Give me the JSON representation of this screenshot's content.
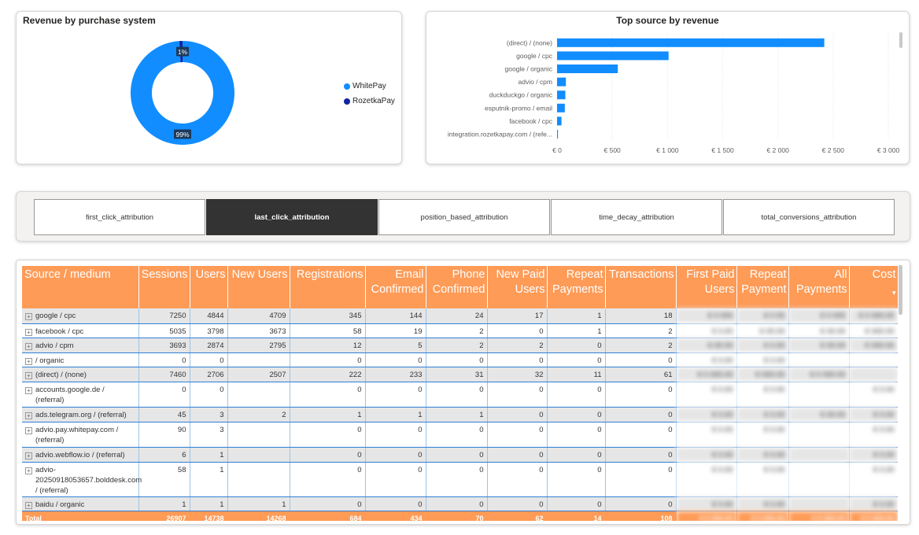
{
  "donut": {
    "title": "Revenue by purchase system",
    "slices": [
      {
        "name": "WhitePay",
        "value": 99,
        "label": "99%",
        "color": "#118dff"
      },
      {
        "name": "RozetkaPay",
        "value": 1,
        "label": "1%",
        "color": "#12239e"
      }
    ]
  },
  "chart_data": {
    "type": "bar",
    "title": "Top source by revenue",
    "categories": [
      "(direct) / (none)",
      "google / cpc",
      "google / organic",
      "advio / cpm",
      "duckduckgo / organic",
      "esputnik-promo / email",
      "facebook / cpc",
      "integration.rozetkapay.com / (refe..."
    ],
    "values": [
      2420,
      1010,
      550,
      80,
      75,
      70,
      40,
      8
    ],
    "xticks": [
      "€ 0",
      "€ 500",
      "€ 1 000",
      "€ 1 500",
      "€ 2 000",
      "€ 2 500",
      "€ 3 000"
    ],
    "xlim": [
      0,
      3000
    ],
    "color": "#118dff",
    "orientation": "horizontal"
  },
  "attribution_tabs": [
    {
      "label": "first_click_attribution",
      "active": false
    },
    {
      "label": "last_click_attribution",
      "active": true
    },
    {
      "label": "position_based_attribution",
      "active": false
    },
    {
      "label": "time_decay_attribution",
      "active": false
    },
    {
      "label": "total_conversions_attribution",
      "active": false
    }
  ],
  "table": {
    "headers": [
      "Source / medium",
      "Sessions",
      "Users",
      "New Users",
      "Registrations",
      "Email Confirmed",
      "Phone Confirmed",
      "New Paid Users",
      "Repeat Payments",
      "Transactions",
      "First Paid Users",
      "Repeat Payment",
      "All Payments",
      "Cost"
    ],
    "sort_indicator": "▾",
    "expand_icon": "+",
    "rows": [
      {
        "source": "google / cpc",
        "cells": [
          "7250",
          "4844",
          "4709",
          "345",
          "144",
          "24",
          "17",
          "1",
          "18"
        ],
        "masked": [
          "€ 0 000",
          "€ 0 00",
          "€ 0 000",
          "€ 0 000.00"
        ]
      },
      {
        "source": "facebook / cpc",
        "cells": [
          "5035",
          "3798",
          "3673",
          "58",
          "19",
          "2",
          "0",
          "1",
          "2"
        ],
        "masked": [
          "€ 0.00",
          "€ 00.00",
          "€ 00.00",
          "€ 000.00"
        ]
      },
      {
        "source": "advio / cpm",
        "cells": [
          "3693",
          "2874",
          "2795",
          "12",
          "5",
          "2",
          "2",
          "0",
          "2"
        ],
        "masked": [
          "€ 00.00",
          "€ 0.00",
          "€ 00.00",
          "€ 000.00"
        ]
      },
      {
        "source": "/ organic",
        "cells": [
          "0",
          "0",
          "",
          "0",
          "0",
          "0",
          "0",
          "0",
          "0"
        ],
        "masked": [
          "€ 0.00",
          "€ 0.00",
          "",
          ""
        ]
      },
      {
        "source": "(direct) / (none)",
        "cells": [
          "7460",
          "2706",
          "2507",
          "222",
          "233",
          "31",
          "32",
          "11",
          "61"
        ],
        "masked": [
          "€ 0 000.00",
          "€ 000.00",
          "€ 0 000.00",
          ""
        ]
      },
      {
        "source": "accounts.google.de / (referral)",
        "cells": [
          "0",
          "0",
          "",
          "0",
          "0",
          "0",
          "0",
          "0",
          "0"
        ],
        "masked": [
          "€ 0.00",
          "€ 0.00",
          "",
          "€ 0.00"
        ]
      },
      {
        "source": "ads.telegram.org / (referral)",
        "cells": [
          "45",
          "3",
          "2",
          "1",
          "1",
          "1",
          "0",
          "0",
          "0"
        ],
        "masked": [
          "€ 0.00",
          "€ 0.00",
          "€ 00.00",
          "€ 0.00"
        ]
      },
      {
        "source": "advio.pay.whitepay.com / (referral)",
        "cells": [
          "90",
          "3",
          "",
          "0",
          "0",
          "0",
          "0",
          "0",
          "0"
        ],
        "masked": [
          "€ 0.00",
          "€ 0.00",
          "",
          "€ 0.00"
        ]
      },
      {
        "source": "advio.webflow.io / (referral)",
        "cells": [
          "6",
          "1",
          "",
          "0",
          "0",
          "0",
          "0",
          "0",
          "0"
        ],
        "masked": [
          "€ 0.00",
          "€ 0.00",
          "",
          "€ 0.00"
        ]
      },
      {
        "source": "advio-20250918053657.bolddesk.com / (referral)",
        "cells": [
          "58",
          "1",
          "",
          "0",
          "0",
          "0",
          "0",
          "0",
          "0"
        ],
        "masked": [
          "€ 0.00",
          "€ 0.00",
          "",
          "€ 0.00"
        ]
      },
      {
        "source": "baidu / organic",
        "cells": [
          "1",
          "1",
          "1",
          "0",
          "0",
          "0",
          "0",
          "0",
          "0"
        ],
        "masked": [
          "€ 0.00",
          "€ 0.00",
          "",
          "€ 0.00"
        ]
      }
    ],
    "total": {
      "label": "Total",
      "cells": [
        "26907",
        "14738",
        "14268",
        "684",
        "434",
        "70",
        "62",
        "14",
        "108"
      ],
      "masked": [
        "€ 0 000.00",
        "€ 0 000.00",
        "€ 0 000.00",
        "€ 0 000.00"
      ]
    }
  }
}
